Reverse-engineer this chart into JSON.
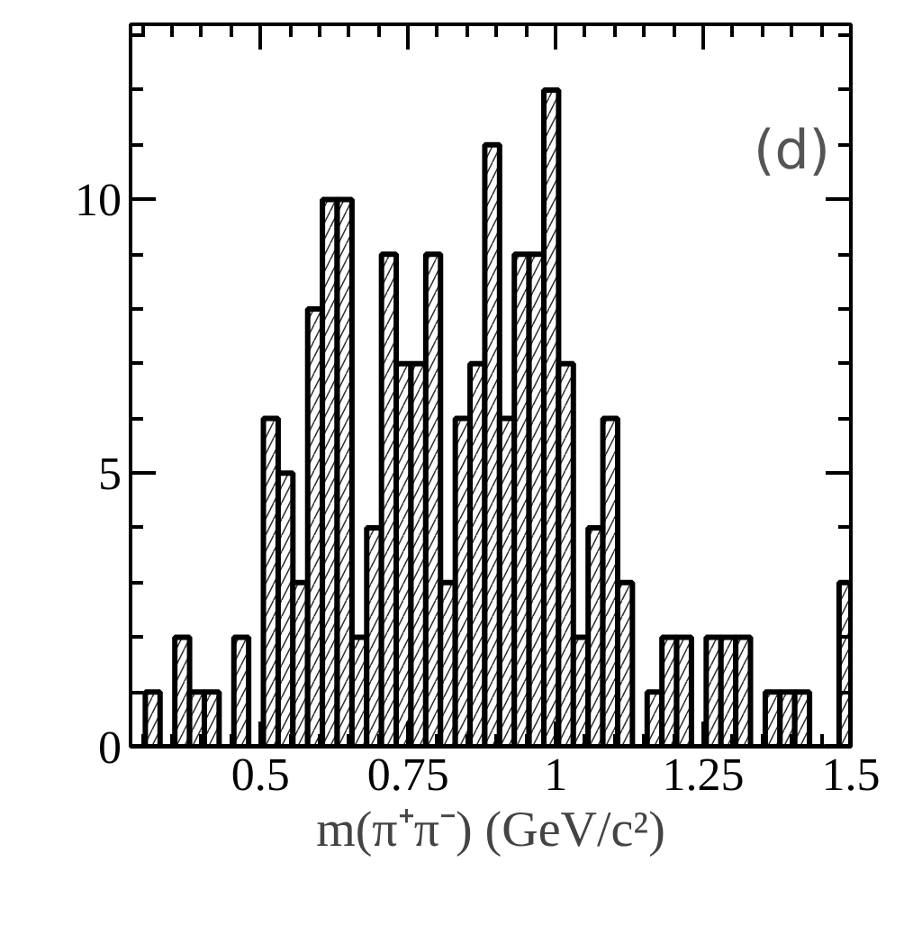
{
  "chart_data": {
    "type": "histogram",
    "xlabel": "m(π⁺π⁻) (GeV/c²)",
    "annotations": [
      "(d)"
    ],
    "bins": [
      0.28,
      0.305,
      0.33,
      0.355,
      0.38,
      0.405,
      0.43,
      0.455,
      0.48,
      0.505,
      0.53,
      0.555,
      0.58,
      0.605,
      0.63,
      0.655,
      0.68,
      0.705,
      0.73,
      0.755,
      0.78,
      0.805,
      0.83,
      0.855,
      0.88,
      0.905,
      0.93,
      0.955,
      0.98,
      1.005,
      1.03,
      1.055,
      1.08,
      1.105,
      1.13,
      1.155,
      1.18,
      1.205,
      1.23,
      1.255,
      1.28,
      1.305,
      1.33,
      1.355,
      1.38,
      1.405,
      1.43,
      1.455,
      1.48,
      1.5
    ],
    "values": [
      0,
      1,
      0,
      2,
      1,
      1,
      0,
      2,
      0,
      6,
      5,
      3,
      8,
      10,
      10,
      2,
      4,
      9,
      7,
      7,
      9,
      3,
      6,
      7,
      11,
      6,
      9,
      9,
      12,
      7,
      2,
      4,
      6,
      3,
      0,
      1,
      2,
      2,
      0,
      2,
      2,
      2,
      0,
      1,
      1,
      1,
      0,
      0,
      3
    ],
    "color": "#000000",
    "xlim": [
      0.28,
      1.5
    ],
    "ylim": [
      0,
      13.2
    ],
    "xticks": [
      {
        "value": 0.3,
        "label": null
      },
      {
        "value": 0.35,
        "label": null
      },
      {
        "value": 0.4,
        "label": null
      },
      {
        "value": 0.45,
        "label": null
      },
      0.5,
      {
        "value": 0.55,
        "label": null
      },
      {
        "value": 0.6,
        "label": null
      },
      {
        "value": 0.65,
        "label": null
      },
      {
        "value": 0.7,
        "label": null
      },
      0.75,
      {
        "value": 0.8,
        "label": null
      },
      {
        "value": 0.85,
        "label": null
      },
      {
        "value": 0.9,
        "label": null
      },
      {
        "value": 0.95,
        "label": null
      },
      1,
      {
        "value": 1.05,
        "label": null
      },
      {
        "value": 1.1,
        "label": null
      },
      {
        "value": 1.15,
        "label": null
      },
      {
        "value": 1.2,
        "label": null
      },
      1.25,
      {
        "value": 1.3,
        "label": null
      },
      {
        "value": 1.35,
        "label": null
      },
      {
        "value": 1.4,
        "label": null
      },
      {
        "value": 1.45,
        "label": null
      },
      1.5
    ],
    "yticks": [
      0,
      {
        "value": 1,
        "label": null
      },
      {
        "value": 2,
        "label": null
      },
      {
        "value": 3,
        "label": null
      },
      {
        "value": 4,
        "label": null
      },
      5,
      {
        "value": 6,
        "label": null
      },
      {
        "value": 7,
        "label": null
      },
      {
        "value": 8,
        "label": null
      },
      {
        "value": 9,
        "label": null
      },
      10,
      {
        "value": 11,
        "label": null
      },
      {
        "value": 12,
        "label": null
      },
      {
        "value": 13,
        "label": null
      }
    ],
    "grid": false
  }
}
